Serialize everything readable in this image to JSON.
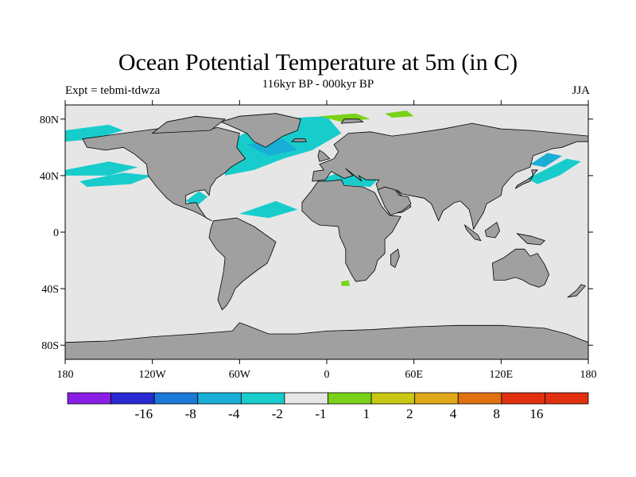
{
  "chart_data": {
    "type": "heatmap",
    "title": "Ocean Potential Temperature at 5m (in C)",
    "subtitle": "116kyr BP - 000kyr BP",
    "left_string": "Expt = tebmi-tdwza",
    "right_string": "JJA",
    "projection": "cylindrical-equidistant",
    "xlim": [
      -180,
      180
    ],
    "ylim": [
      -90,
      90
    ],
    "x_ticks": [
      {
        "value": -180,
        "label": "180"
      },
      {
        "value": -120,
        "label": "120W"
      },
      {
        "value": -60,
        "label": "60W"
      },
      {
        "value": 0,
        "label": "0"
      },
      {
        "value": 60,
        "label": "60E"
      },
      {
        "value": 120,
        "label": "120E"
      },
      {
        "value": 180,
        "label": "180"
      }
    ],
    "y_ticks": [
      {
        "value": 80,
        "label": "80N"
      },
      {
        "value": 40,
        "label": "40N"
      },
      {
        "value": 0,
        "label": "0"
      },
      {
        "value": -40,
        "label": "40S"
      },
      {
        "value": -80,
        "label": "80S"
      }
    ],
    "colorbar": {
      "levels": [
        {
          "color": "#8a1ee6",
          "label": ""
        },
        {
          "color": "#2a2ad2",
          "label": "-16"
        },
        {
          "color": "#1a78d8",
          "label": "-8"
        },
        {
          "color": "#1aaed6",
          "label": "-4"
        },
        {
          "color": "#18cccc",
          "label": "-2"
        },
        {
          "color": "#e6e6e6",
          "label": "-1"
        },
        {
          "color": "#7ad218",
          "label": "1"
        },
        {
          "color": "#c8c814",
          "label": "2"
        },
        {
          "color": "#e0a818",
          "label": "4"
        },
        {
          "color": "#e07010",
          "label": "8"
        },
        {
          "color": "#e03010",
          "label": "16"
        },
        {
          "color": "#e03010",
          "label": ""
        }
      ]
    },
    "colors": {
      "land": "#a0a0a0",
      "ocean_neutral": "#e6e6e6",
      "cool_light": "#18cccc",
      "cool_mid": "#1aaed6",
      "warm_light": "#7ad218"
    }
  }
}
